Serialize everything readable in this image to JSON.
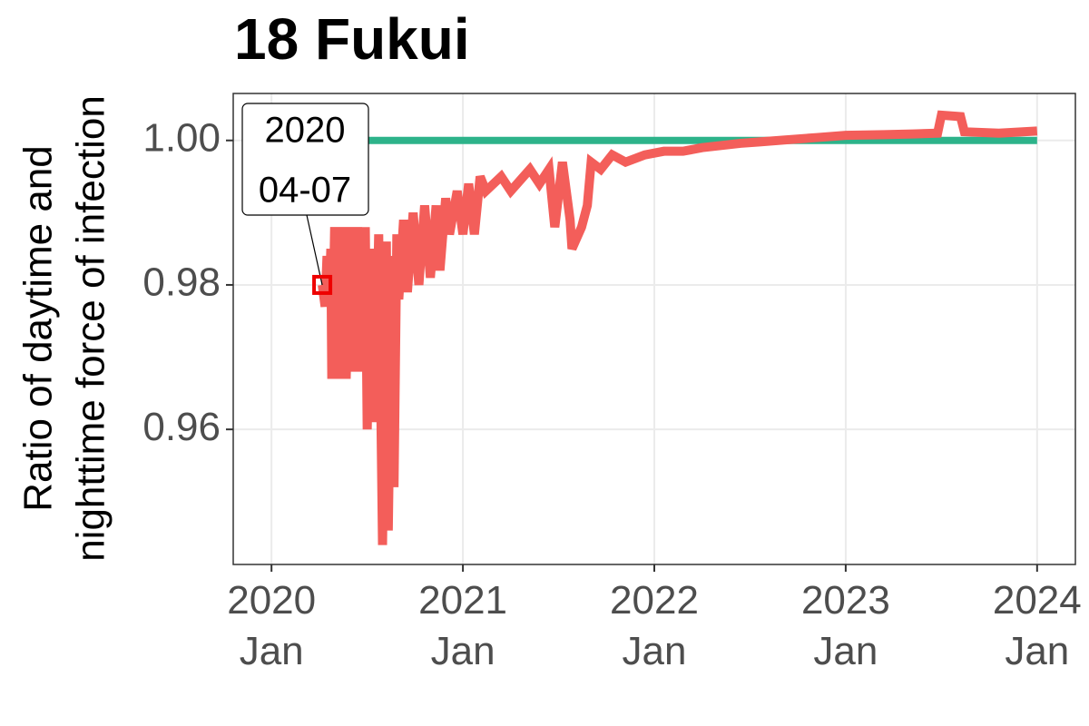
{
  "chart_data": {
    "type": "line",
    "title": "18 Fukui",
    "ylabel": [
      "Ratio of daytime and",
      "nighttime force of infection"
    ],
    "xlim": [
      2019.8,
      2024.2
    ],
    "ylim": [
      0.9413,
      1.0065
    ],
    "xticks": [
      {
        "value": 2020,
        "label": "2020\nJan"
      },
      {
        "value": 2021,
        "label": "2021\nJan"
      },
      {
        "value": 2022,
        "label": "2022\nJan"
      },
      {
        "value": 2023,
        "label": "2023\nJan"
      },
      {
        "value": 2024,
        "label": "2024\nJan"
      }
    ],
    "yticks": [
      0.96,
      0.98,
      {
        "value": 1,
        "label": "1.00"
      }
    ],
    "grid": true,
    "series": [
      {
        "color": "#2db38a",
        "x": [
          2020.265,
          2024.0
        ],
        "values": [
          1,
          1
        ]
      },
      {
        "color": "#f35e5a",
        "x": [
          2020.265,
          2020.28,
          2020.29,
          2020.3,
          2020.31,
          2020.315,
          2020.33,
          2020.35,
          2020.37,
          2020.39,
          2020.41,
          2020.43,
          2020.45,
          2020.47,
          2020.49,
          2020.5,
          2020.52,
          2020.54,
          2020.56,
          2020.58,
          2020.6,
          2020.61,
          2020.63,
          2020.64,
          2020.655,
          2020.665,
          2020.69,
          2020.71,
          2020.74,
          2020.77,
          2020.8,
          2020.83,
          2020.86,
          2020.88,
          2020.91,
          2020.93,
          2020.97,
          2021.0,
          2021.03,
          2021.06,
          2021.09,
          2021.12,
          2021.2,
          2021.25,
          2021.35,
          2021.4,
          2021.45,
          2021.48,
          2021.52,
          2021.56,
          2021.57,
          2021.62,
          2021.65,
          2021.67,
          2021.72,
          2021.78,
          2021.85,
          2021.95,
          2022.05,
          2022.15,
          2022.25,
          2022.35,
          2022.45,
          2022.55,
          2022.7,
          2022.85,
          2023.0,
          2023.2,
          2023.35,
          2023.48,
          2023.5,
          2023.6,
          2023.62,
          2023.8,
          2024.0
        ],
        "values": [
          0.98,
          0.977,
          0.984,
          0.977,
          0.985,
          0.967,
          0.988,
          0.967,
          0.988,
          0.967,
          0.988,
          0.968,
          0.988,
          0.968,
          0.988,
          0.96,
          0.985,
          0.961,
          0.987,
          0.944,
          0.986,
          0.946,
          0.984,
          0.952,
          0.987,
          0.978,
          0.989,
          0.979,
          0.99,
          0.98,
          0.991,
          0.981,
          0.991,
          0.982,
          0.992,
          0.987,
          0.993,
          0.987,
          0.994,
          0.987,
          0.995,
          0.993,
          0.995,
          0.993,
          0.996,
          0.994,
          0.996,
          0.988,
          0.997,
          0.989,
          0.985,
          0.988,
          0.991,
          0.997,
          0.996,
          0.998,
          0.997,
          0.998,
          0.9985,
          0.9985,
          0.999,
          0.9993,
          0.9996,
          0.9998,
          1.0001,
          1.0004,
          1.0007,
          1.0008,
          1.0009,
          1.001,
          1.0035,
          1.0033,
          1.0012,
          1.001,
          1.0013
        ]
      }
    ],
    "annotation": {
      "text": [
        "2020",
        "04-07"
      ],
      "x": 2020.265,
      "y": 0.98,
      "color": "#ee0000"
    }
  }
}
